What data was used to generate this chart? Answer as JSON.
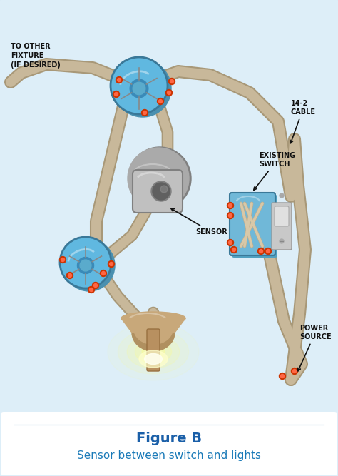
{
  "title": "Figure B",
  "subtitle": "Sensor between switch and lights",
  "title_color": "#1a5fa8",
  "subtitle_color": "#1a7ab8",
  "bg_color": "#cfe8f5",
  "border_color": "#7ab4d6",
  "inner_bg": "#ddeef8",
  "diagram_bg": "#ddeef8",
  "wire_color": "#c8b89a",
  "wire_dark": "#a89878",
  "wire_lw_outer": 13,
  "wire_lw_inner": 10,
  "labels": {
    "to_other_fixture": "TO OTHER\nFIXTURE\n(IF DESIRED)",
    "sensor": "SENSOR",
    "cable": "14-2\nCABLE",
    "existing_switch": "EXISTING\nSWITCH",
    "power_source": "POWER\nSOURCE"
  },
  "label_color": "#111111",
  "arrow_color": "#111111",
  "junction_box_color": "#60b8e0",
  "junction_box_back": "#4a90b0",
  "junction_box_rim": "#3a7898",
  "sensor_dark": "#808080",
  "sensor_mid": "#aaaaaa",
  "sensor_light": "#c0c0c0",
  "sensor_eye": "#555555",
  "switch_box_color": "#70b8d8",
  "switch_box_dark": "#50a0c0",
  "switch_plate_color": "#c8c8c8",
  "switch_toggle_color": "#e0e0e0",
  "light_shade": "#c8a87a",
  "light_shade_dark": "#b09060",
  "light_glow1": "#ffffc0",
  "light_glow2": "#fffff0",
  "wire_red_tip": "#cc3300",
  "wire_white_color": "#dddddd",
  "wire_gray_color": "#aaaaaa",
  "title_fontsize": 14,
  "subtitle_fontsize": 11,
  "label_fontsize": 7,
  "bottom_panel_color": "#ffffff"
}
